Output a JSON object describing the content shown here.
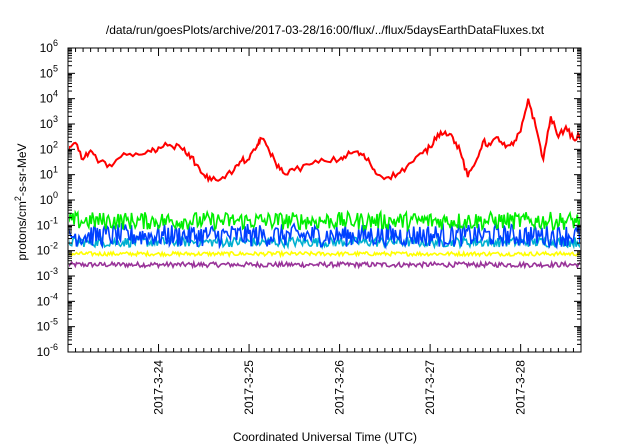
{
  "chart_data": {
    "type": "line",
    "title": "/data/run/goesPlots/archive/2017-03-28/16:00/flux/../flux/5daysEarthDataFluxes.txt",
    "xlabel": "Coordinated Universal Time (UTC)",
    "ylabel": {
      "base": "protons/cm",
      "sup": "2",
      "rest": "-s-sr-MeV"
    },
    "yscale": "log",
    "ylim": [
      1e-06,
      1000000.0
    ],
    "xlim": [
      "2017-03-23 00:00",
      "2017-03-28 16:00"
    ],
    "x_ticks": [
      "2017-3-24",
      "2017-3-25",
      "2017-3-26",
      "2017-3-27",
      "2017-3-28"
    ],
    "y_ticks": [
      {
        "base": "10",
        "exp": "6"
      },
      {
        "base": "10",
        "exp": "5"
      },
      {
        "base": "10",
        "exp": "4"
      },
      {
        "base": "10",
        "exp": "3"
      },
      {
        "base": "10",
        "exp": "2"
      },
      {
        "base": "10",
        "exp": "1"
      },
      {
        "base": "10",
        "exp": "0"
      },
      {
        "base": "10",
        "exp": "-1"
      },
      {
        "base": "10",
        "exp": "-2"
      },
      {
        "base": "10",
        "exp": "-3"
      },
      {
        "base": "10",
        "exp": "-4"
      },
      {
        "base": "10",
        "exp": "-5"
      },
      {
        "base": "10",
        "exp": "-6"
      }
    ],
    "grid": false,
    "legend": "none",
    "series_colors": [
      "#ff0000",
      "#00ee00",
      "#0040ff",
      "#00b0d0",
      "#ffff00",
      "#993399"
    ],
    "series": [
      {
        "color": "#ff0000",
        "points": [
          [
            "2017-03-23 00:00",
            80
          ],
          [
            "2017-03-23 02:00",
            180
          ],
          [
            "2017-03-23 04:00",
            40
          ],
          [
            "2017-03-23 06:00",
            90
          ],
          [
            "2017-03-23 08:00",
            30
          ],
          [
            "2017-03-23 11:00",
            25
          ],
          [
            "2017-03-23 14:00",
            50
          ],
          [
            "2017-03-23 18:00",
            70
          ],
          [
            "2017-03-23 22:00",
            80
          ],
          [
            "2017-03-24 00:00",
            120
          ],
          [
            "2017-03-24 03:00",
            150
          ],
          [
            "2017-03-24 06:00",
            110
          ],
          [
            "2017-03-24 08:00",
            70
          ],
          [
            "2017-03-24 10:00",
            25
          ],
          [
            "2017-03-24 12:00",
            10
          ],
          [
            "2017-03-24 14:00",
            6
          ],
          [
            "2017-03-24 17:00",
            8
          ],
          [
            "2017-03-24 20:00",
            15
          ],
          [
            "2017-03-24 22:00",
            35
          ],
          [
            "2017-03-25 00:00",
            40
          ],
          [
            "2017-03-25 02:00",
            120
          ],
          [
            "2017-03-25 03:00",
            280
          ],
          [
            "2017-03-25 05:00",
            120
          ],
          [
            "2017-03-25 07:00",
            30
          ],
          [
            "2017-03-25 09:00",
            12
          ],
          [
            "2017-03-25 12:00",
            15
          ],
          [
            "2017-03-25 16:00",
            25
          ],
          [
            "2017-03-25 20:00",
            35
          ],
          [
            "2017-03-26 00:00",
            40
          ],
          [
            "2017-03-26 02:00",
            60
          ],
          [
            "2017-03-26 04:00",
            80
          ],
          [
            "2017-03-26 06:00",
            60
          ],
          [
            "2017-03-26 08:00",
            30
          ],
          [
            "2017-03-26 10:00",
            10
          ],
          [
            "2017-03-26 13:00",
            8
          ],
          [
            "2017-03-26 16:00",
            12
          ],
          [
            "2017-03-26 19:00",
            30
          ],
          [
            "2017-03-26 22:00",
            70
          ],
          [
            "2017-03-27 00:00",
            120
          ],
          [
            "2017-03-27 02:00",
            400
          ],
          [
            "2017-03-27 04:00",
            500
          ],
          [
            "2017-03-27 06:00",
            300
          ],
          [
            "2017-03-27 08:00",
            80
          ],
          [
            "2017-03-27 10:00",
            8
          ],
          [
            "2017-03-27 12:00",
            30
          ],
          [
            "2017-03-27 14:00",
            200
          ],
          [
            "2017-03-27 16:00",
            150
          ],
          [
            "2017-03-27 18:00",
            300
          ],
          [
            "2017-03-27 20:00",
            120
          ],
          [
            "2017-03-27 22:00",
            150
          ],
          [
            "2017-03-28 00:00",
            500
          ],
          [
            "2017-03-28 02:00",
            10000
          ],
          [
            "2017-03-28 04:00",
            800
          ],
          [
            "2017-03-28 06:00",
            40
          ],
          [
            "2017-03-28 08:00",
            2000
          ],
          [
            "2017-03-28 10:00",
            300
          ],
          [
            "2017-03-28 12:00",
            800
          ],
          [
            "2017-03-28 14:00",
            250
          ],
          [
            "2017-03-28 16:00",
            400
          ]
        ]
      },
      {
        "color": "#00ee00",
        "level": 0.15,
        "noise_decades": 0.35
      },
      {
        "color": "#0040ff",
        "level": 0.04,
        "noise_decades": 0.45
      },
      {
        "color": "#00b0d0",
        "level": 0.022,
        "noise_decades": 0.2
      },
      {
        "color": "#ffff00",
        "level": 0.0075,
        "noise_decades": 0.08
      },
      {
        "color": "#993399",
        "level": 0.0028,
        "noise_decades": 0.1
      }
    ]
  }
}
